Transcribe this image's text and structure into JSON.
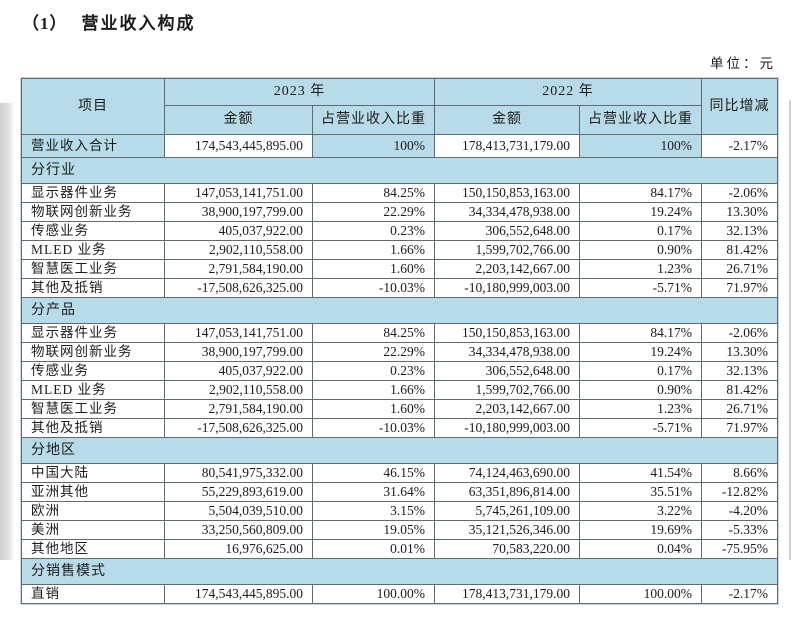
{
  "page": {
    "title_number": "（1）",
    "title_text": "营业收入构成",
    "unit_label": "单位：元"
  },
  "colors": {
    "table_blue": "#b7dbe8",
    "border_gray": "#5f6b70",
    "text": "#1c1c1c"
  },
  "table": {
    "headers": {
      "item": "项目",
      "year_2023": "2023 年",
      "year_2022": "2022 年",
      "yoy": "同比增减",
      "amount_2023": "金额",
      "ratio_2023": "占营业收入比重",
      "amount_2022": "金额",
      "ratio_2022": "占营业收入比重"
    },
    "rows": [
      {
        "type": "total",
        "label": "营业收入合计",
        "a2023": "174,543,445,895.00",
        "r2023": "100%",
        "a2022": "178,413,731,179.00",
        "r2022": "100%",
        "yoy": "-2.17%"
      },
      {
        "type": "section",
        "label": "分行业"
      },
      {
        "type": "data",
        "label": "显示器件业务",
        "a2023": "147,053,141,751.00",
        "r2023": "84.25%",
        "a2022": "150,150,853,163.00",
        "r2022": "84.17%",
        "yoy": "-2.06%"
      },
      {
        "type": "data",
        "label": "物联网创新业务",
        "a2023": "38,900,197,799.00",
        "r2023": "22.29%",
        "a2022": "34,334,478,938.00",
        "r2022": "19.24%",
        "yoy": "13.30%"
      },
      {
        "type": "data",
        "label": "传感业务",
        "a2023": "405,037,922.00",
        "r2023": "0.23%",
        "a2022": "306,552,648.00",
        "r2022": "0.17%",
        "yoy": "32.13%"
      },
      {
        "type": "data",
        "label": "MLED 业务",
        "a2023": "2,902,110,558.00",
        "r2023": "1.66%",
        "a2022": "1,599,702,766.00",
        "r2022": "0.90%",
        "yoy": "81.42%"
      },
      {
        "type": "data",
        "label": "智慧医工业务",
        "a2023": "2,791,584,190.00",
        "r2023": "1.60%",
        "a2022": "2,203,142,667.00",
        "r2022": "1.23%",
        "yoy": "26.71%"
      },
      {
        "type": "data",
        "label": "其他及抵销",
        "a2023": "-17,508,626,325.00",
        "r2023": "-10.03%",
        "a2022": "-10,180,999,003.00",
        "r2022": "-5.71%",
        "yoy": "71.97%"
      },
      {
        "type": "section",
        "label": "分产品"
      },
      {
        "type": "data",
        "label": "显示器件业务",
        "a2023": "147,053,141,751.00",
        "r2023": "84.25%",
        "a2022": "150,150,853,163.00",
        "r2022": "84.17%",
        "yoy": "-2.06%"
      },
      {
        "type": "data",
        "label": "物联网创新业务",
        "a2023": "38,900,197,799.00",
        "r2023": "22.29%",
        "a2022": "34,334,478,938.00",
        "r2022": "19.24%",
        "yoy": "13.30%"
      },
      {
        "type": "data",
        "label": "传感业务",
        "a2023": "405,037,922.00",
        "r2023": "0.23%",
        "a2022": "306,552,648.00",
        "r2022": "0.17%",
        "yoy": "32.13%"
      },
      {
        "type": "data",
        "label": "MLED 业务",
        "a2023": "2,902,110,558.00",
        "r2023": "1.66%",
        "a2022": "1,599,702,766.00",
        "r2022": "0.90%",
        "yoy": "81.42%"
      },
      {
        "type": "data",
        "label": "智慧医工业务",
        "a2023": "2,791,584,190.00",
        "r2023": "1.60%",
        "a2022": "2,203,142,667.00",
        "r2022": "1.23%",
        "yoy": "26.71%"
      },
      {
        "type": "data",
        "label": "其他及抵销",
        "a2023": "-17,508,626,325.00",
        "r2023": "-10.03%",
        "a2022": "-10,180,999,003.00",
        "r2022": "-5.71%",
        "yoy": "71.97%"
      },
      {
        "type": "section",
        "label": "分地区"
      },
      {
        "type": "data",
        "label": "中国大陆",
        "a2023": "80,541,975,332.00",
        "r2023": "46.15%",
        "a2022": "74,124,463,690.00",
        "r2022": "41.54%",
        "yoy": "8.66%"
      },
      {
        "type": "data",
        "label": "亚洲其他",
        "a2023": "55,229,893,619.00",
        "r2023": "31.64%",
        "a2022": "63,351,896,814.00",
        "r2022": "35.51%",
        "yoy": "-12.82%"
      },
      {
        "type": "data",
        "label": "欧洲",
        "a2023": "5,504,039,510.00",
        "r2023": "3.15%",
        "a2022": "5,745,261,109.00",
        "r2022": "3.22%",
        "yoy": "-4.20%"
      },
      {
        "type": "data",
        "label": "美洲",
        "a2023": "33,250,560,809.00",
        "r2023": "19.05%",
        "a2022": "35,121,526,346.00",
        "r2022": "19.69%",
        "yoy": "-5.33%"
      },
      {
        "type": "data",
        "label": "其他地区",
        "a2023": "16,976,625.00",
        "r2023": "0.01%",
        "a2022": "70,583,220.00",
        "r2022": "0.04%",
        "yoy": "-75.95%"
      },
      {
        "type": "section",
        "label": "分销售模式"
      },
      {
        "type": "data",
        "label": "直销",
        "a2023": "174,543,445,895.00",
        "r2023": "100.00%",
        "a2022": "178,413,731,179.00",
        "r2022": "100.00%",
        "yoy": "-2.17%"
      }
    ]
  }
}
